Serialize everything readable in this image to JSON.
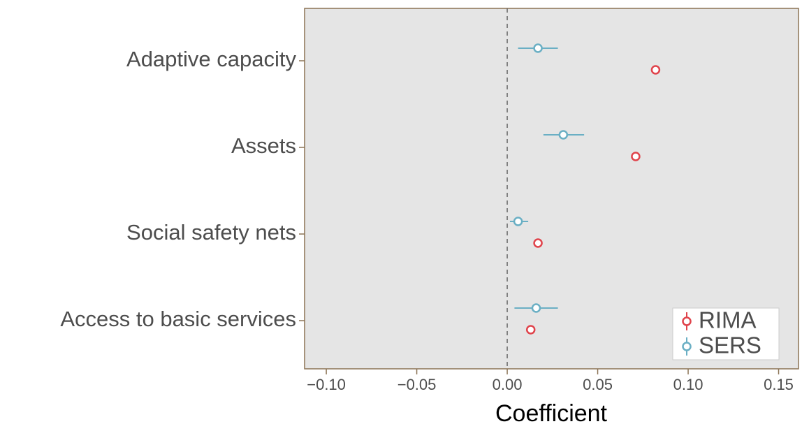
{
  "chart_data": {
    "type": "dot-whisker",
    "x_label": "Coefficient",
    "categories": [
      "Adaptive capacity",
      "Assets",
      "Social safety nets",
      "Access to basic services"
    ],
    "series": [
      {
        "name": "RIMA",
        "color": "#e0434b",
        "values": [
          0.082,
          0.071,
          0.017,
          0.013
        ]
      },
      {
        "name": "SERS",
        "color": "#6aafc4",
        "values": [
          0.017,
          0.031,
          0.006,
          0.016
        ],
        "lower": [
          0.006,
          0.02,
          0.0015,
          0.004
        ],
        "upper": [
          0.028,
          0.0425,
          0.0116,
          0.028
        ]
      }
    ],
    "xlim": [
      -0.112,
      0.161
    ],
    "xticks": [
      {
        "value": -0.1,
        "label": "−0.10"
      },
      {
        "value": -0.05,
        "label": "−0.05"
      },
      {
        "value": 0,
        "label": "0.00"
      },
      0.05,
      {
        "value": 0.1,
        "label": "0.10"
      },
      0.15
    ],
    "vline": 0,
    "legend": "lower right"
  }
}
